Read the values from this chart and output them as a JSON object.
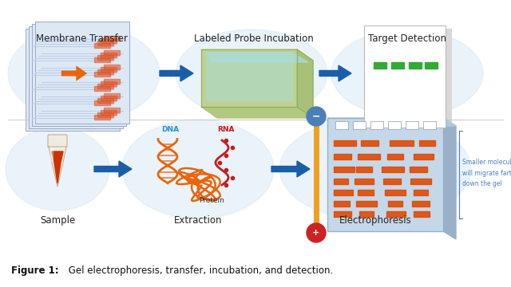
{
  "bg_color": "#ffffff",
  "fig_caption_bold": "Figure 1:",
  "fig_caption_rest": " Gel electrophoresis, transfer, incubation, and detection.",
  "bubble_color": "#daeaf5",
  "arrow_color": "#1a5ea8",
  "orange_color": "#e8650a",
  "dna_color": "#e8650a",
  "rna_color": "#cc1a1a",
  "band_color": "#e04800",
  "gel_color": "#c5d8ea",
  "gel_border": "#9ab0c8",
  "tube_body": "#f2ede0",
  "tube_liquid": "#cc3300",
  "elec_bar_color": "#f0a020",
  "elec_minus_color": "#4a80b8",
  "elec_plus_color": "#cc2222",
  "smaller_mol_text": "Smaller molecules\nwill migrate farther\ndown the gel",
  "smaller_mol_color": "#4a80bb",
  "membrane_color": "#dde8f5",
  "membrane_edge": "#99aac8",
  "tray_top": "#ccd8a8",
  "tray_front": "#b8c890",
  "tray_liquid": "#a8ddd8",
  "detection_line_color": "#33aa33",
  "divider_color": "#cccccc",
  "label_color": "#222222"
}
